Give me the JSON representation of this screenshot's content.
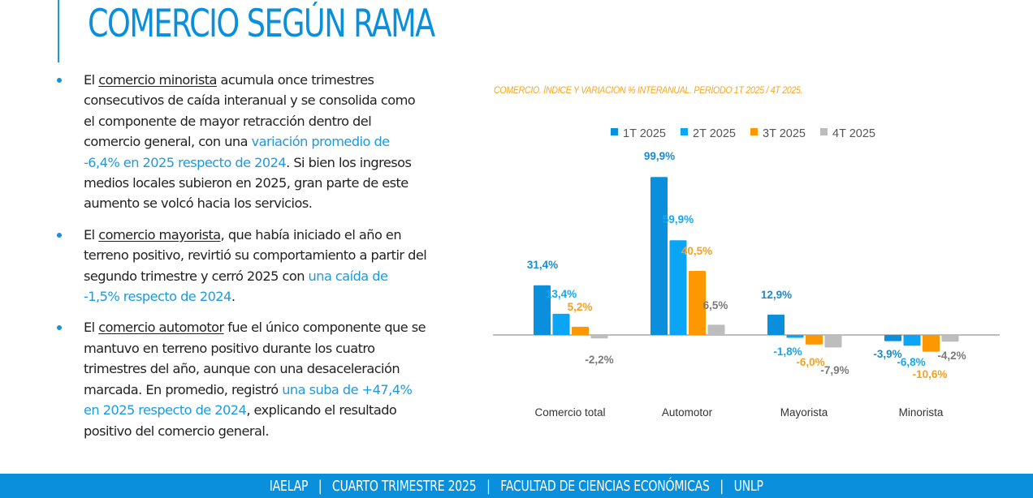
{
  "header": {
    "title": "COMERCIO SEGÚN RAMA"
  },
  "bullets": [
    {
      "pre": "El ",
      "underlined": "comercio minorista",
      "mid": " acumula once trimestres consecutivos de caída interanual y se consolida como el componente de mayor retracción dentro del comercio general, con una ",
      "highlight": "variación promedio de -6,4% en 2025 respecto de 2024",
      "post": ". Si bien los ingresos medios locales subieron en 2025, gran parte de este aumento se volcó hacia los servicios."
    },
    {
      "pre": "El ",
      "underlined": "comercio mayorista",
      "mid": ", que había iniciado el año en terreno positivo, revirtió su comportamiento a partir del segundo trimestre y cerró 2025 con ",
      "highlight": "una caída de -1,5% respecto de 2024",
      "post": "."
    },
    {
      "pre": "El ",
      "underlined": "comercio automotor",
      "mid": " fue el único componente que se mantuvo en terreno positivo durante los cuatro trimestres del año, aunque con una desaceleración marcada. En promedio, registró ",
      "highlight": "una suba de +47,4% en 2025 respecto de 2024",
      "post": ", explicando el resultado positivo del comercio general."
    }
  ],
  "chart_data": {
    "type": "bar",
    "title": "COMERCIO. ÍNDICE Y VARIACIÓN % INTERANUAL. PERÍODO 1T 2025 / 4T 2025.",
    "categories": [
      "Comercio total",
      "Automotor",
      "Mayorista",
      "Minorista"
    ],
    "series": [
      {
        "name": "1T 2025",
        "color": "#0a8fdc",
        "label_color": "#1f8ac9",
        "values": [
          31.4,
          99.9,
          12.9,
          -3.9
        ],
        "labels": [
          "31,4%",
          "99,9%",
          "12,9%",
          "-3,9%"
        ]
      },
      {
        "name": "2T 2025",
        "color": "#0aa5f5",
        "label_color": "#1aa6ee",
        "values": [
          13.4,
          59.9,
          -1.8,
          -6.8
        ],
        "labels": [
          "13,4%",
          "59,9%",
          "-1,8%",
          "-6,8%"
        ]
      },
      {
        "name": "3T 2025",
        "color": "#ff9800",
        "label_color": "#f5a020",
        "values": [
          5.2,
          40.5,
          -6.0,
          -10.6
        ],
        "labels": [
          "5,2%",
          "40,5%",
          "-6,0%",
          "-10,6%"
        ]
      },
      {
        "name": "4T 2025",
        "color": "#bdbdbd",
        "label_color": "#7a7a7a",
        "values": [
          -2.2,
          6.5,
          -7.9,
          -4.2
        ],
        "labels": [
          "-2,2%",
          "6,5%",
          "-7,9%",
          "-4,2%"
        ]
      }
    ],
    "legend": "top",
    "grid": false,
    "xlabel": "",
    "ylabel": ""
  },
  "footer": {
    "text": "IAELAP   |   CUARTO TRIMESTRE 2025   |   FACULTAD DE CIENCIAS ECONÓMICAS   |   UNLP"
  }
}
